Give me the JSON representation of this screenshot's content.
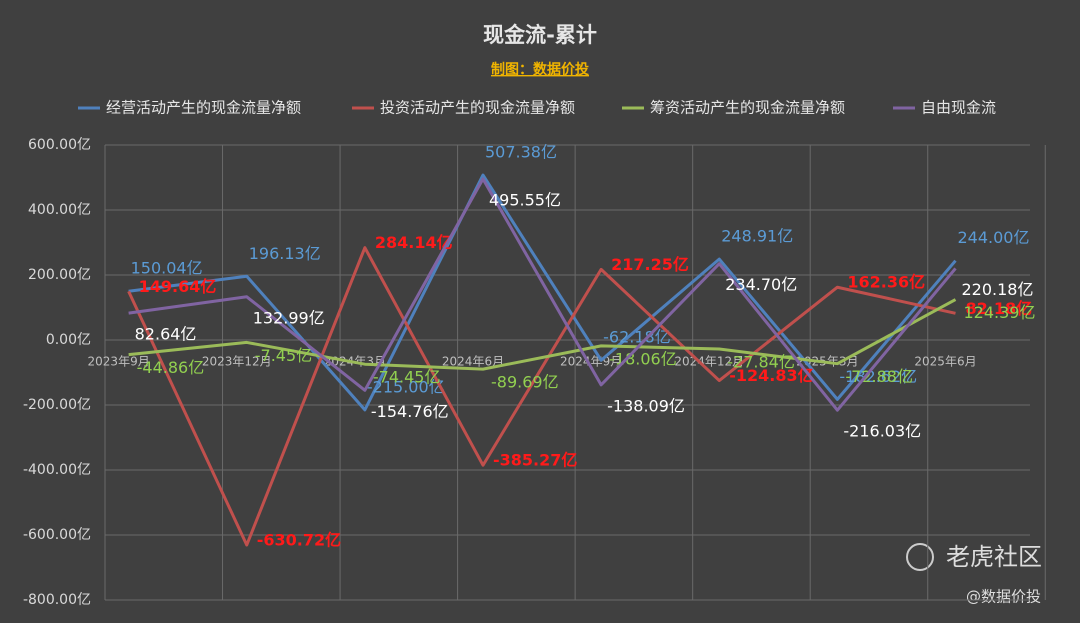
{
  "chart_data": {
    "type": "line",
    "title": "现金流-累计",
    "subtitle": "制图：数据价投",
    "categories": [
      "2023年9月",
      "2023年12月",
      "2024年3月",
      "2024年6月",
      "2024年9月",
      "2024年12月",
      "2025年3月",
      "2025年6月"
    ],
    "series": [
      {
        "name": "经营活动产生的现金流量净额",
        "color": "#4f81bd",
        "label_color": "#5b9bd5",
        "values": [
          150.04,
          196.13,
          -215,
          507.38,
          -62.18,
          248.91,
          -182.62,
          244
        ],
        "value_labels": [
          "150.04亿",
          "196.13亿",
          "-215.00亿",
          "507.38亿",
          "-62.18亿",
          "248.91亿",
          "-182.62亿",
          "244.00亿"
        ]
      },
      {
        "name": "投资活动产生的现金流量净额",
        "color": "#c0504d",
        "label_color": "#ff1a1a",
        "values": [
          149.64,
          -630.72,
          284.14,
          -385.27,
          217.25,
          -124.83,
          162.36,
          82.18
        ],
        "value_labels": [
          "149.64亿",
          "-630.72亿",
          "284.14亿",
          "-385.27亿",
          "217.25亿",
          "-124.83亿",
          "162.36亿",
          "82.18亿"
        ]
      },
      {
        "name": "筹资活动产生的现金流量净额",
        "color": "#9bbb59",
        "label_color": "#92d050",
        "values": [
          -44.86,
          -7.45,
          -74.45,
          -89.69,
          -18.06,
          -27.84,
          -72.88,
          124.39
        ],
        "value_labels": [
          "-44.86亿",
          "-7.45亿",
          "-74.45亿",
          "-89.69亿",
          "-18.06亿",
          "-27.84亿",
          "-72.88亿",
          "124.39亿"
        ]
      },
      {
        "name": "自由现金流",
        "color": "#8064a2",
        "label_color": "#ffffff",
        "values": [
          82.64,
          132.99,
          -154.76,
          495.55,
          -138.09,
          234.7,
          -216.03,
          220.18
        ],
        "value_labels": [
          "82.64亿",
          "132.99亿",
          "-154.76亿",
          "495.55亿",
          "-138.09亿",
          "234.70亿",
          "-216.03亿",
          "220.18亿"
        ]
      }
    ],
    "ylim": [
      -800,
      600
    ],
    "yticks": [
      {
        "value": -800,
        "label": "-800.00亿"
      },
      {
        "value": -600,
        "label": "-600.00亿"
      },
      {
        "value": -400,
        "label": "-400.00亿"
      },
      {
        "value": -200,
        "label": "-200.00亿"
      },
      {
        "value": 0,
        "label": "0.00亿"
      },
      {
        "value": 200,
        "label": "200.00亿"
      },
      {
        "value": 400,
        "label": "400.00亿"
      },
      {
        "value": 600,
        "label": "600.00亿"
      }
    ],
    "grid": true,
    "legend": "top",
    "annotations": [
      "老虎社区",
      "@数据价投"
    ]
  }
}
